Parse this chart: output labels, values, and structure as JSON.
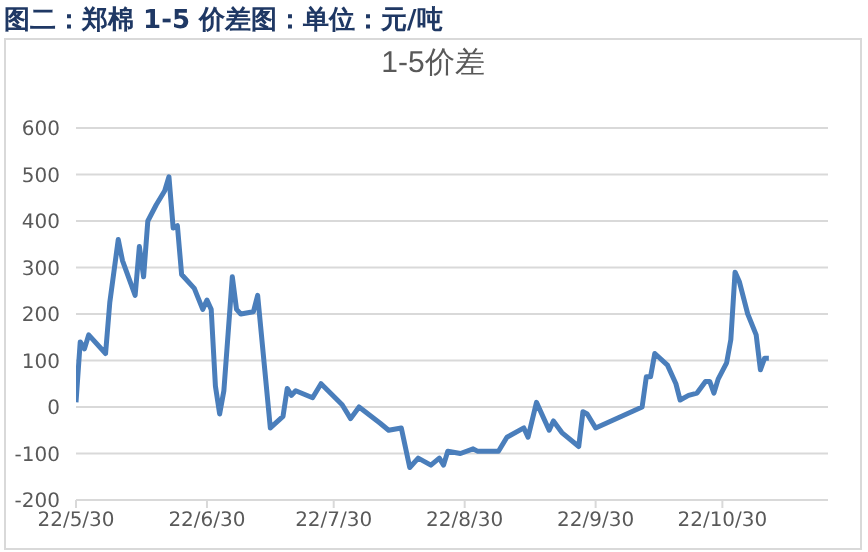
{
  "chart_data": {
    "type": "line",
    "title": "图二：郑棉 1-5 价差图：单位：元/吨",
    "subtitle": "1-5价差",
    "x": [
      "--05-30",
      "--05-31",
      "--06-01",
      "--06-02",
      "--06-06",
      "--06-07",
      "--06-09",
      "--06-10",
      "--06-13",
      "--06-14",
      "--06-15",
      "--06-16",
      "--06-18",
      "--06-20",
      "--06-21",
      "--06-22",
      "--06-23",
      "--06-24",
      "--06-27",
      "--06-29",
      "--06-30",
      "--07-01",
      "--07-02",
      "--07-03",
      "--07-04",
      "--07-06",
      "--07-07",
      "--07-08",
      "--07-11",
      "--07-12",
      "--07-15",
      "--07-18",
      "--07-19",
      "--07-20",
      "--07-21",
      "--07-25",
      "--07-27",
      "--08-01",
      "--08-03",
      "--08-05",
      "--08-10",
      "--08-12",
      "--08-15",
      "--08-17",
      "--08-19",
      "--08-22",
      "--08-24",
      "--08-25",
      "--08-26",
      "--08-29",
      "--09-01",
      "--09-02",
      "--09-07",
      "--09-09",
      "--09-13",
      "--09-14",
      "--09-16",
      "--09-19",
      "--09-20",
      "--09-22",
      "--09-26",
      "--09-27",
      "--09-28",
      "--09-30",
      "--10-11",
      "--10-12",
      "--10-13",
      "--10-14",
      "--10-17",
      "--10-19",
      "--10-20",
      "--10-22",
      "--10-24",
      "--10-26",
      "--10-27",
      "--10-28",
      "--10-29",
      "--10-31",
      "--11-01",
      "--11-02",
      "--11-03",
      "--11-05",
      "--11-07",
      "--11-08",
      "--11-09",
      "--11-10"
    ],
    "series": [
      {
        "color": "#4a7ebb",
        "values": [
          10,
          140,
          125,
          155,
          115,
          225,
          360,
          315,
          240,
          345,
          280,
          400,
          435,
          465,
          495,
          385,
          390,
          285,
          255,
          210,
          230,
          210,
          45,
          -15,
          35,
          280,
          210,
          200,
          205,
          240,
          -45,
          -20,
          40,
          25,
          35,
          20,
          50,
          5,
          -25,
          0,
          -35,
          -50,
          -45,
          -130,
          -110,
          -125,
          -110,
          -125,
          -95,
          -100,
          -90,
          -95,
          -95,
          -65,
          -45,
          -65,
          10,
          -50,
          -30,
          -55,
          -85,
          -10,
          -15,
          -45,
          0,
          65,
          65,
          115,
          90,
          50,
          15,
          25,
          30,
          55,
          55,
          30,
          60,
          95,
          145,
          290,
          270,
          200,
          155,
          80,
          105,
          105
        ]
      }
    ],
    "xlim": [
      "--05-30",
      "--11-24"
    ],
    "xticks": [
      {
        "value": "--05-30",
        "label": "22/5/30"
      },
      {
        "value": "--06-30",
        "label": "22/6/30"
      },
      {
        "value": "--07-30",
        "label": "22/7/30"
      },
      {
        "value": "--08-30",
        "label": "22/8/30"
      },
      {
        "value": "--09-30",
        "label": "22/9/30"
      },
      {
        "value": "--10-30",
        "label": "22/10/30"
      }
    ],
    "ylim": [
      -200,
      600
    ],
    "yticks": [
      -200,
      -100,
      0,
      100,
      200,
      300,
      400,
      500,
      600
    ],
    "grid": "y",
    "marker": "none",
    "line_style": "solid"
  }
}
